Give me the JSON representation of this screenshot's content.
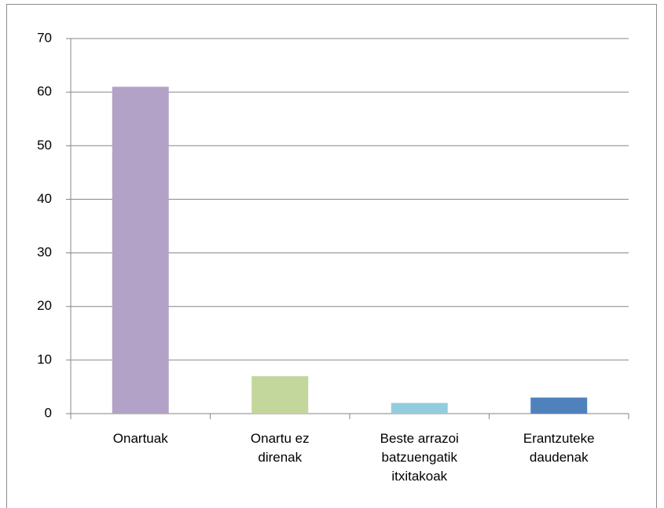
{
  "chart_data": {
    "type": "bar",
    "categories": [
      "Onartuak",
      "Onartu ez direnak",
      "Beste arrazoi batzuengatik itxitakoak",
      "Erantzuteke daudenak"
    ],
    "values": [
      61,
      7,
      2,
      3
    ],
    "colors": [
      "#b3a2c7",
      "#c3d69b",
      "#93cddd",
      "#4f81bd"
    ],
    "ylim": [
      0,
      70
    ],
    "yticks": [
      0,
      10,
      20,
      30,
      40,
      50,
      60,
      70
    ],
    "grid": true
  }
}
